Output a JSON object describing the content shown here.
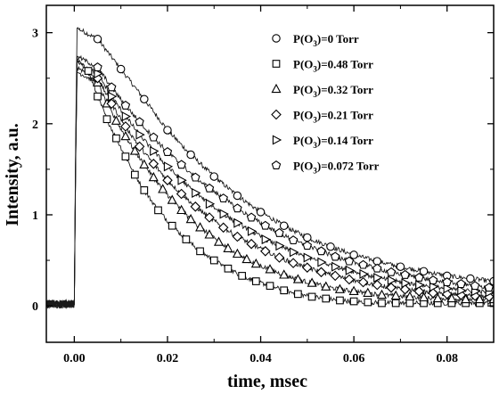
{
  "chart_data": {
    "type": "line",
    "xlabel": "time, msec",
    "ylabel": "Intensity, a.u.",
    "xlim": [
      -0.006,
      0.09
    ],
    "ylim": [
      -0.4,
      3.3
    ],
    "x_ticks": [
      0.0,
      0.02,
      0.04,
      0.06,
      0.08
    ],
    "x_tick_labels": [
      "0.00",
      "0.02",
      "0.04",
      "0.06",
      "0.08"
    ],
    "y_ticks": [
      0,
      1,
      2,
      3
    ],
    "y_tick_labels": [
      "0",
      "1",
      "2",
      "3"
    ],
    "legend_position": "top-right",
    "grid": false,
    "series": [
      {
        "name": "P(O3)=0 Torr",
        "marker": "circle",
        "x": [
          0.005,
          0.01,
          0.015,
          0.02,
          0.025,
          0.03,
          0.035,
          0.04,
          0.045,
          0.05,
          0.055,
          0.06,
          0.065,
          0.07,
          0.075,
          0.08,
          0.085,
          0.09
        ],
        "y": [
          2.93,
          2.6,
          2.27,
          1.93,
          1.66,
          1.42,
          1.21,
          1.03,
          0.88,
          0.75,
          0.65,
          0.56,
          0.49,
          0.43,
          0.38,
          0.33,
          0.3,
          0.27
        ]
      },
      {
        "name": "P(O3)=0.48 Torr",
        "marker": "square",
        "x": [
          0.003,
          0.005,
          0.007,
          0.009,
          0.011,
          0.013,
          0.015,
          0.018,
          0.021,
          0.024,
          0.027,
          0.03,
          0.033,
          0.036,
          0.039,
          0.042,
          0.045,
          0.048,
          0.051,
          0.054,
          0.057,
          0.06,
          0.063,
          0.066,
          0.069,
          0.072,
          0.075,
          0.078,
          0.081,
          0.084,
          0.087,
          0.09
        ],
        "y": [
          2.58,
          2.3,
          2.05,
          1.84,
          1.64,
          1.44,
          1.27,
          1.05,
          0.88,
          0.73,
          0.6,
          0.5,
          0.41,
          0.33,
          0.27,
          0.22,
          0.17,
          0.13,
          0.1,
          0.08,
          0.06,
          0.05,
          0.04,
          0.03,
          0.03,
          0.03,
          0.03,
          0.03,
          0.03,
          0.03,
          0.03,
          0.03
        ]
      },
      {
        "name": "P(O3)=0.32 Torr",
        "marker": "triangle-up",
        "x": [
          0.005,
          0.007,
          0.009,
          0.011,
          0.013,
          0.015,
          0.017,
          0.019,
          0.021,
          0.023,
          0.025,
          0.027,
          0.029,
          0.031,
          0.033,
          0.035,
          0.037,
          0.039,
          0.042,
          0.045,
          0.048,
          0.051,
          0.054,
          0.057,
          0.06,
          0.063,
          0.066,
          0.069,
          0.072,
          0.075,
          0.078,
          0.081,
          0.084,
          0.087,
          0.09
        ],
        "y": [
          2.45,
          2.22,
          2.03,
          1.86,
          1.7,
          1.55,
          1.41,
          1.28,
          1.16,
          1.05,
          0.95,
          0.86,
          0.78,
          0.7,
          0.63,
          0.57,
          0.51,
          0.46,
          0.4,
          0.34,
          0.29,
          0.25,
          0.21,
          0.18,
          0.16,
          0.14,
          0.12,
          0.11,
          0.1,
          0.09,
          0.08,
          0.08,
          0.07,
          0.07,
          0.07
        ]
      },
      {
        "name": "P(O3)=0.21 Torr",
        "marker": "diamond",
        "x": [
          0.005,
          0.008,
          0.011,
          0.014,
          0.017,
          0.02,
          0.023,
          0.026,
          0.029,
          0.032,
          0.035,
          0.038,
          0.041,
          0.044,
          0.047,
          0.05,
          0.053,
          0.056,
          0.059,
          0.062,
          0.065,
          0.068,
          0.071,
          0.074,
          0.077,
          0.08,
          0.083,
          0.086,
          0.089
        ],
        "y": [
          2.5,
          2.22,
          1.97,
          1.75,
          1.56,
          1.38,
          1.23,
          1.09,
          0.97,
          0.86,
          0.76,
          0.68,
          0.6,
          0.53,
          0.47,
          0.42,
          0.37,
          0.33,
          0.29,
          0.26,
          0.23,
          0.2,
          0.18,
          0.16,
          0.14,
          0.13,
          0.12,
          0.11,
          0.1
        ]
      },
      {
        "name": "P(O3)=0.14 Torr",
        "marker": "triangle-right",
        "x": [
          0.005,
          0.008,
          0.011,
          0.014,
          0.017,
          0.02,
          0.023,
          0.026,
          0.029,
          0.032,
          0.035,
          0.038,
          0.041,
          0.044,
          0.047,
          0.05,
          0.053,
          0.056,
          0.059,
          0.062,
          0.065,
          0.068,
          0.071,
          0.074,
          0.077,
          0.08,
          0.083,
          0.086,
          0.089
        ],
        "y": [
          2.55,
          2.3,
          2.08,
          1.88,
          1.7,
          1.53,
          1.38,
          1.24,
          1.12,
          1.01,
          0.91,
          0.82,
          0.73,
          0.66,
          0.59,
          0.53,
          0.48,
          0.43,
          0.39,
          0.35,
          0.31,
          0.28,
          0.25,
          0.23,
          0.21,
          0.19,
          0.17,
          0.16,
          0.15
        ]
      },
      {
        "name": "P(O3)=0.072 Torr",
        "marker": "pentagon",
        "x": [
          0.005,
          0.008,
          0.011,
          0.014,
          0.017,
          0.02,
          0.023,
          0.026,
          0.029,
          0.032,
          0.035,
          0.038,
          0.041,
          0.044,
          0.047,
          0.05,
          0.053,
          0.056,
          0.059,
          0.062,
          0.065,
          0.068,
          0.071,
          0.074,
          0.077,
          0.08,
          0.083,
          0.086,
          0.089
        ],
        "y": [
          2.62,
          2.4,
          2.2,
          2.02,
          1.85,
          1.69,
          1.55,
          1.41,
          1.29,
          1.18,
          1.07,
          0.97,
          0.88,
          0.8,
          0.72,
          0.66,
          0.6,
          0.54,
          0.49,
          0.45,
          0.41,
          0.37,
          0.34,
          0.31,
          0.28,
          0.26,
          0.24,
          0.22,
          0.2
        ]
      }
    ]
  }
}
